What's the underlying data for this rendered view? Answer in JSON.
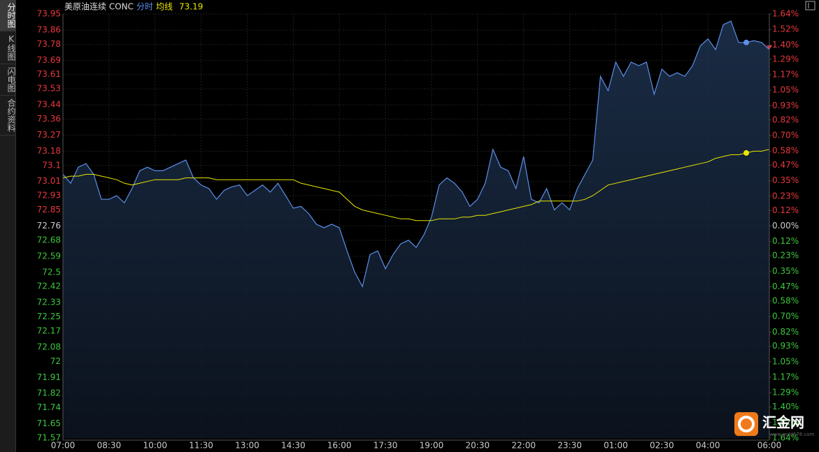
{
  "sidebar": [
    "分时图",
    "K线图",
    "闪电图",
    "合约资料"
  ],
  "watermark": {
    "brand": "汇金网",
    "url": "www.gold678.com"
  },
  "chart_data": {
    "type": "line",
    "header": {
      "name": "美原油连续 CONC",
      "price_label": "分时",
      "avg_label": "均线",
      "avg_value": 73.19
    },
    "x": [
      "07:00",
      "07:15",
      "07:30",
      "07:45",
      "08:00",
      "08:15",
      "08:30",
      "08:45",
      "09:00",
      "09:15",
      "09:30",
      "09:45",
      "10:00",
      "10:15",
      "10:30",
      "10:45",
      "11:00",
      "11:15",
      "11:30",
      "11:45",
      "12:00",
      "12:15",
      "12:30",
      "12:45",
      "13:00",
      "13:15",
      "13:30",
      "13:45",
      "14:00",
      "14:15",
      "14:30",
      "14:45",
      "15:00",
      "15:15",
      "15:30",
      "15:45",
      "16:00",
      "16:15",
      "16:30",
      "16:45",
      "17:00",
      "17:15",
      "17:30",
      "17:45",
      "18:00",
      "18:15",
      "18:30",
      "18:45",
      "19:00",
      "19:15",
      "19:30",
      "19:45",
      "20:00",
      "20:15",
      "20:30",
      "20:45",
      "21:00",
      "21:15",
      "21:30",
      "21:45",
      "22:00",
      "22:15",
      "22:30",
      "22:45",
      "23:00",
      "23:15",
      "23:30",
      "23:45",
      "00:00",
      "00:15",
      "00:30",
      "00:45",
      "01:00",
      "01:15",
      "01:30",
      "01:45",
      "02:00",
      "02:15",
      "02:30",
      "02:45",
      "03:00",
      "03:15",
      "03:30",
      "03:45",
      "04:00",
      "04:15",
      "04:30",
      "04:45",
      "05:00",
      "05:15",
      "05:30",
      "05:45",
      "06:00"
    ],
    "series": [
      {
        "name": "分时",
        "color": "#5b8fe8",
        "values": [
          73.05,
          73.0,
          73.09,
          73.11,
          73.05,
          72.91,
          72.91,
          72.93,
          72.89,
          72.97,
          73.07,
          73.09,
          73.07,
          73.07,
          73.09,
          73.11,
          73.13,
          73.03,
          72.99,
          72.97,
          72.91,
          72.96,
          72.98,
          72.99,
          72.93,
          72.96,
          72.99,
          72.95,
          73.0,
          72.93,
          72.86,
          72.87,
          72.83,
          72.77,
          72.75,
          72.77,
          72.75,
          72.62,
          72.5,
          72.42,
          72.6,
          72.62,
          72.52,
          72.6,
          72.66,
          72.68,
          72.64,
          72.71,
          72.81,
          72.99,
          73.03,
          73.0,
          72.95,
          72.87,
          72.91,
          73.0,
          73.19,
          73.09,
          73.07,
          72.97,
          73.15,
          72.91,
          72.89,
          72.97,
          72.85,
          72.89,
          72.85,
          72.97,
          73.05,
          73.13,
          73.6,
          73.52,
          73.68,
          73.6,
          73.68,
          73.66,
          73.68,
          73.5,
          73.64,
          73.6,
          73.62,
          73.6,
          73.66,
          73.77,
          73.81,
          73.75,
          73.89,
          73.91,
          73.79,
          73.79,
          73.8,
          73.79,
          73.75
        ]
      },
      {
        "name": "均线",
        "color": "#e8e800",
        "values": [
          73.03,
          73.04,
          73.04,
          73.05,
          73.05,
          73.04,
          73.03,
          73.02,
          73.0,
          72.99,
          73.0,
          73.01,
          73.02,
          73.02,
          73.02,
          73.02,
          73.03,
          73.03,
          73.03,
          73.03,
          73.02,
          73.02,
          73.02,
          73.02,
          73.02,
          73.02,
          73.02,
          73.02,
          73.02,
          73.02,
          73.02,
          73.0,
          72.99,
          72.98,
          72.97,
          72.96,
          72.95,
          72.91,
          72.87,
          72.85,
          72.84,
          72.83,
          72.82,
          72.81,
          72.8,
          72.8,
          72.79,
          72.79,
          72.79,
          72.8,
          72.8,
          72.8,
          72.81,
          72.81,
          72.82,
          72.82,
          72.83,
          72.84,
          72.85,
          72.86,
          72.87,
          72.88,
          72.9,
          72.9,
          72.9,
          72.9,
          72.9,
          72.9,
          72.91,
          72.93,
          72.96,
          72.99,
          73.0,
          73.01,
          73.02,
          73.03,
          73.04,
          73.05,
          73.06,
          73.07,
          73.08,
          73.09,
          73.1,
          73.11,
          73.12,
          73.14,
          73.15,
          73.16,
          73.16,
          73.17,
          73.18,
          73.18,
          73.19
        ]
      }
    ],
    "ylim": [
      71.57,
      73.95
    ],
    "yticks": [
      73.95,
      73.86,
      73.78,
      73.69,
      73.61,
      73.53,
      73.44,
      73.36,
      73.27,
      73.18,
      73.1,
      73.01,
      72.93,
      72.85,
      72.76,
      72.68,
      72.59,
      72.5,
      72.42,
      72.33,
      72.25,
      72.17,
      72.08,
      72.0,
      71.91,
      71.82,
      71.74,
      71.65,
      71.57
    ],
    "y2lim": [
      -1.64,
      1.64
    ],
    "y2ticks": [
      {
        "value": 1.64,
        "label": "1.64%"
      },
      {
        "value": 1.52,
        "label": "1.52%"
      },
      {
        "value": 1.4,
        "label": "1.40%"
      },
      {
        "value": 1.29,
        "label": "1.29%"
      },
      {
        "value": 1.17,
        "label": "1.17%"
      },
      {
        "value": 1.05,
        "label": "1.05%"
      },
      {
        "value": 0.93,
        "label": "0.93%"
      },
      {
        "value": 0.82,
        "label": "0.82%"
      },
      {
        "value": 0.7,
        "label": "0.70%"
      },
      {
        "value": 0.58,
        "label": "0.58%"
      },
      {
        "value": 0.47,
        "label": "0.47%"
      },
      {
        "value": 0.35,
        "label": "0.35%"
      },
      {
        "value": 0.23,
        "label": "0.23%"
      },
      {
        "value": 0.12,
        "label": "0.12%"
      },
      {
        "value": 0,
        "label": "0.00%"
      },
      {
        "value": -0.12,
        "label": "0.12%"
      },
      {
        "value": -0.23,
        "label": "0.23%"
      },
      {
        "value": -0.35,
        "label": "0.35%"
      },
      {
        "value": -0.47,
        "label": "0.47%"
      },
      {
        "value": -0.58,
        "label": "0.58%"
      },
      {
        "value": -0.7,
        "label": "0.70%"
      },
      {
        "value": -0.82,
        "label": "0.82%"
      },
      {
        "value": -0.93,
        "label": "0.93%"
      },
      {
        "value": -1.05,
        "label": "1.05%"
      },
      {
        "value": -1.17,
        "label": "1.17%"
      },
      {
        "value": -1.29,
        "label": "1.29%"
      },
      {
        "value": -1.4,
        "label": "1.40%"
      },
      {
        "value": -1.52,
        "label": "1.52%"
      },
      {
        "value": -1.64,
        "label": "1.64%"
      }
    ],
    "xticks": [
      "07:00",
      "08:30",
      "10:00",
      "11:30",
      "13:00",
      "14:30",
      "16:00",
      "17:30",
      "19:00",
      "20:30",
      "22:00",
      "23:30",
      "01:00",
      "02:30",
      "04:00",
      "06:00"
    ],
    "grid": true,
    "up_color": "#e8383d",
    "down_color": "#3cc83c",
    "cursor_index": 89
  }
}
